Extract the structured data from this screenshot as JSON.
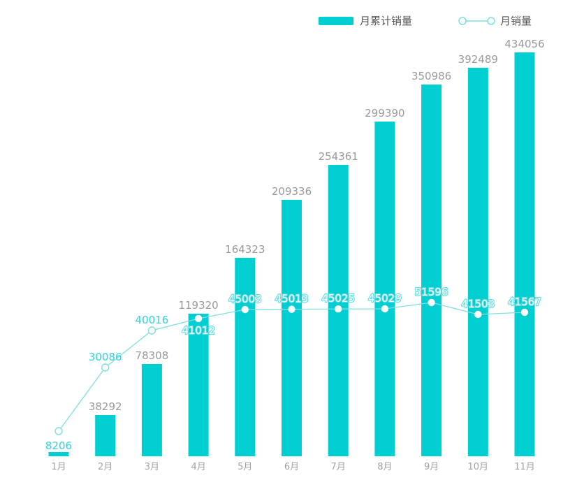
{
  "chart_data": {
    "type": "bar",
    "categories": [
      "1月",
      "2月",
      "3月",
      "4月",
      "5月",
      "6月",
      "7月",
      "8月",
      "9月",
      "10月",
      "11月"
    ],
    "series": [
      {
        "name": "月累计销量",
        "type": "bar",
        "color": "#00CED1",
        "values": [
          8206,
          38292,
          78308,
          119320,
          164323,
          209336,
          254361,
          299390,
          350986,
          392489,
          434056
        ]
      },
      {
        "name": "月销量",
        "type": "line",
        "color": "#7FDFE0",
        "values": [
          8206,
          30086,
          40016,
          41012,
          45003,
          45013,
          45025,
          45029,
          51596,
          41503,
          41567
        ]
      }
    ],
    "legend": "top-right",
    "grid": false,
    "y_axis_visible": false
  }
}
